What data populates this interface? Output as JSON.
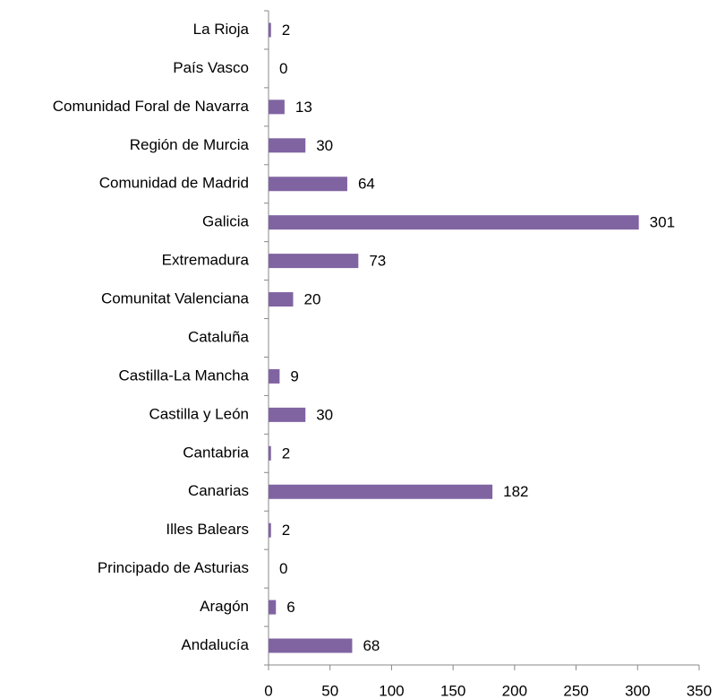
{
  "chart_data": {
    "type": "hbar",
    "categories": [
      "La Rioja",
      "País Vasco",
      "Comunidad Foral de Navarra",
      "Región de Murcia",
      "Comunidad de Madrid",
      "Galicia",
      "Extremadura",
      "Comunitat Valenciana",
      "Cataluña",
      "Castilla-La Mancha",
      "Castilla y León",
      "Cantabria",
      "Canarias",
      "Illes Balears",
      "Principado de Asturias",
      "Aragón",
      "Andalucía"
    ],
    "values": [
      2,
      0,
      13,
      30,
      64,
      301,
      73,
      20,
      null,
      9,
      30,
      2,
      182,
      2,
      0,
      6,
      68
    ],
    "color": "#8064a2",
    "xlim": [
      0,
      350
    ],
    "xticks": [
      0,
      50,
      100,
      150,
      200,
      250,
      300,
      350
    ],
    "grid": false
  }
}
